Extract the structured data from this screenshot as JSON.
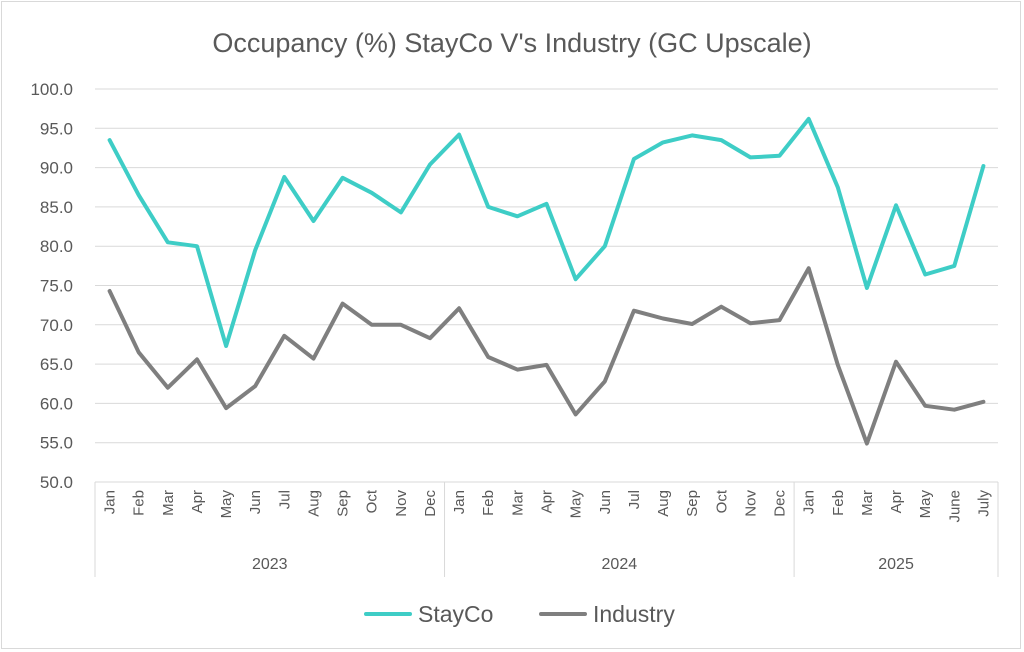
{
  "chart_data": {
    "type": "line",
    "title": "Occupancy (%) StayCo V's Industry (GC Upscale)",
    "xlabel": "",
    "ylabel": "",
    "ylim": [
      50,
      100
    ],
    "y_ticks": [
      "50.0",
      "55.0",
      "60.0",
      "65.0",
      "70.0",
      "75.0",
      "80.0",
      "85.0",
      "90.0",
      "95.0",
      "100.0"
    ],
    "grid": true,
    "legend_position": "bottom",
    "categories": [
      "Jan",
      "Feb",
      "Mar",
      "Apr",
      "May",
      "Jun",
      "Jul",
      "Aug",
      "Sep",
      "Oct",
      "Nov",
      "Dec",
      "Jan",
      "Feb",
      "Mar",
      "Apr",
      "May",
      "Jun",
      "Jul",
      "Aug",
      "Sep",
      "Oct",
      "Nov",
      "Dec",
      "Jan",
      "Feb",
      "Mar",
      "Apr",
      "May",
      "June",
      "July"
    ],
    "groups": [
      {
        "label": "2023",
        "count": 12
      },
      {
        "label": "2024",
        "count": 12
      },
      {
        "label": "2025",
        "count": 7
      }
    ],
    "series": [
      {
        "name": "StayCo",
        "color": "#3ecdc6",
        "values": [
          93.5,
          86.5,
          80.5,
          80.0,
          67.3,
          79.5,
          88.8,
          83.2,
          88.7,
          86.8,
          84.3,
          90.4,
          94.2,
          85.0,
          83.8,
          85.4,
          75.8,
          80.0,
          91.1,
          93.2,
          94.1,
          93.5,
          91.3,
          91.5,
          96.2,
          87.5,
          74.7,
          85.2,
          76.4,
          77.5,
          90.2
        ]
      },
      {
        "name": "Industry",
        "color": "#7f7f7f",
        "values": [
          74.3,
          66.5,
          62.0,
          65.6,
          59.4,
          62.2,
          68.6,
          65.7,
          72.7,
          70.0,
          70.0,
          68.3,
          72.1,
          65.9,
          64.3,
          64.9,
          58.6,
          62.8,
          71.8,
          70.8,
          70.1,
          72.3,
          70.2,
          70.6,
          77.2,
          64.9,
          54.9,
          65.3,
          59.7,
          59.2,
          60.2
        ]
      }
    ]
  }
}
